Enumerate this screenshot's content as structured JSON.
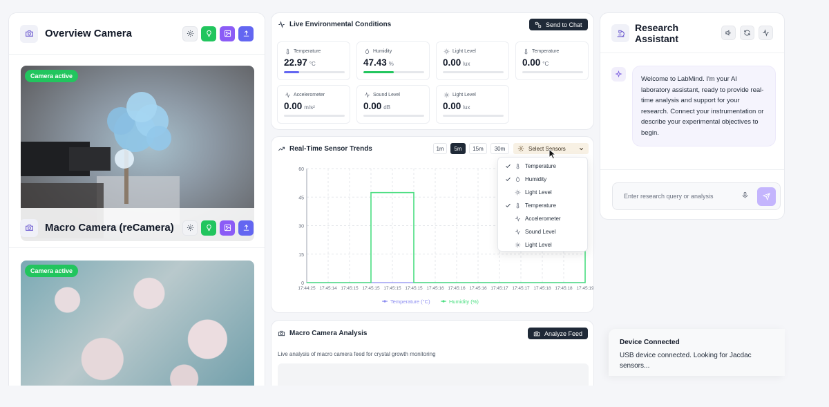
{
  "overview_camera": {
    "title": "Overview Camera",
    "badge": "Camera active"
  },
  "macro_camera": {
    "title": "Macro Camera (reCamera)",
    "badge": "Camera active"
  },
  "environment": {
    "title": "Live Environmental Conditions",
    "send_button": "Send to Chat",
    "sensors": [
      {
        "label": "Temperature",
        "value": "22.97",
        "unit": "°C",
        "icon": "thermometer-icon",
        "level": 0.25,
        "color": "#6366f1"
      },
      {
        "label": "Humidity",
        "value": "47.43",
        "unit": "%",
        "icon": "droplet-icon",
        "level": 0.5,
        "color": "#22c55e"
      },
      {
        "label": "Light Level",
        "value": "0.00",
        "unit": "lux",
        "icon": "sun-icon",
        "level": 0,
        "color": "#e5e7eb"
      },
      {
        "label": "Temperature",
        "value": "0.00",
        "unit": "°C",
        "icon": "thermometer-icon",
        "level": 0,
        "color": "#e5e7eb"
      },
      {
        "label": "Accelerometer",
        "value": "0.00",
        "unit": "m/s²",
        "icon": "activity-icon",
        "level": 0,
        "color": "#e5e7eb"
      },
      {
        "label": "Sound Level",
        "value": "0.00",
        "unit": "dB",
        "icon": "activity-icon",
        "level": 0,
        "color": "#e5e7eb"
      },
      {
        "label": "Light Level",
        "value": "0.00",
        "unit": "lux",
        "icon": "sun-icon",
        "level": 0,
        "color": "#e5e7eb"
      }
    ]
  },
  "trends": {
    "title": "Real-Time Sensor Trends",
    "ranges": [
      "1m",
      "5m",
      "15m",
      "30m"
    ],
    "active_range": "5m",
    "select_label": "Select Sensors",
    "dropdown": [
      {
        "label": "Temperature",
        "checked": true,
        "icon": "thermometer-icon"
      },
      {
        "label": "Humidity",
        "checked": true,
        "icon": "droplet-icon"
      },
      {
        "label": "Light Level",
        "checked": false,
        "icon": "sun-icon"
      },
      {
        "label": "Temperature",
        "checked": true,
        "icon": "thermometer-icon"
      },
      {
        "label": "Accelerometer",
        "checked": false,
        "icon": "activity-icon"
      },
      {
        "label": "Sound Level",
        "checked": false,
        "icon": "activity-icon"
      },
      {
        "label": "Light Level",
        "checked": false,
        "icon": "sun-icon"
      }
    ]
  },
  "chart_data": {
    "type": "line",
    "x": [
      "17:44:25",
      "17:45:14",
      "17:45:15",
      "17:45:15",
      "17:45:15",
      "17:45:15",
      "17:45:16",
      "17:45:16",
      "17:45:16",
      "17:45:17",
      "17:45:17",
      "17:45:18",
      "17:45:18",
      "17:45:19"
    ],
    "yticks": [
      0,
      15,
      30,
      45,
      60
    ],
    "ylim": [
      0,
      60
    ],
    "grid": true,
    "legend_position": "bottom",
    "series": [
      {
        "name": "Temperature (°C)",
        "color": "#8b8cf0",
        "values": [
          0,
          0,
          0,
          0,
          0,
          0,
          0,
          0,
          0,
          0,
          0,
          0,
          0,
          0
        ]
      },
      {
        "name": "Humidity (%)",
        "color": "#4ade80",
        "values": [
          0,
          0,
          0,
          47.4,
          47.4,
          0,
          0,
          0,
          0,
          0,
          0,
          0,
          0,
          47.4
        ]
      }
    ]
  },
  "analysis": {
    "title": "Macro Camera Analysis",
    "button": "Analyze Feed",
    "description": "Live analysis of macro camera feed for crystal growth monitoring"
  },
  "assistant": {
    "title": "Research Assistant",
    "message": "Welcome to LabMind. I'm your AI laboratory assistant, ready to provide real-time analysis and support for your research. Connect your instrumentation or describe your experimental objectives to begin.",
    "input_placeholder": "Enter research query or analysis"
  },
  "toast": {
    "title": "Device Connected",
    "message": "USB device connected. Looking for Jacdac sensors..."
  },
  "colors": {
    "accent_purple": "#8b5cf6",
    "accent_green": "#22c55e",
    "accent_indigo": "#6366f1"
  }
}
